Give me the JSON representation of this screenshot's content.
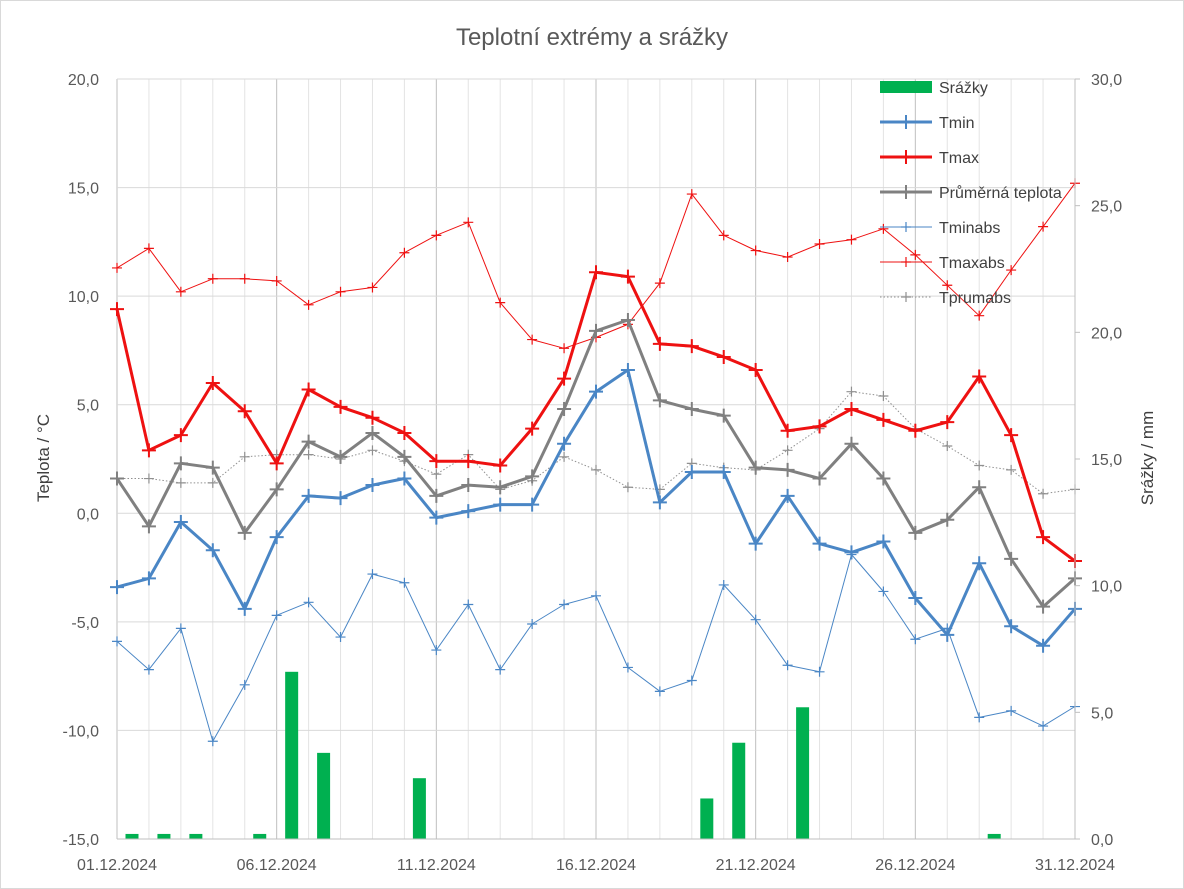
{
  "chart_data": {
    "type": "line",
    "title": "Teplotní extrémy a srážky",
    "ylabel": "Teplota / °C",
    "y2label": "Srážky / mm",
    "ylim": [
      -15,
      20
    ],
    "y2lim": [
      0,
      30
    ],
    "y_ticks": [
      "-15,0",
      "-10,0",
      "-5,0",
      "0,0",
      "5,0",
      "10,0",
      "15,0",
      "20,0"
    ],
    "y2_ticks": [
      "0,0",
      "5,0",
      "10,0",
      "15,0",
      "20,0",
      "25,0",
      "30,0"
    ],
    "x_tick_labels": [
      "01.12.2024",
      "06.12.2024",
      "11.12.2024",
      "16.12.2024",
      "21.12.2024",
      "26.12.2024",
      "31.12.2024"
    ],
    "x_tick_days": [
      1,
      6,
      11,
      16,
      21,
      26,
      31
    ],
    "grid": true,
    "legend_position": "top-right",
    "x": [
      1,
      2,
      3,
      4,
      5,
      6,
      7,
      8,
      9,
      10,
      11,
      12,
      13,
      14,
      15,
      16,
      17,
      18,
      19,
      20,
      21,
      22,
      23,
      24,
      25,
      26,
      27,
      28,
      29,
      30,
      31
    ],
    "bar_series": {
      "name": "Srážky",
      "axis": "right",
      "color": "#00b050",
      "values": [
        0.2,
        0.2,
        0.2,
        0,
        0.2,
        6.6,
        3.4,
        0,
        0,
        2.4,
        0,
        0,
        0,
        0,
        0,
        0,
        0,
        0,
        1.6,
        3.8,
        0,
        5.2,
        0,
        0,
        0,
        0,
        0,
        0.2,
        0,
        0,
        0
      ]
    },
    "series": [
      {
        "name": "Tmin",
        "color": "#4a86c5",
        "style": "thick",
        "values": [
          -3.4,
          -3.0,
          -0.4,
          -1.7,
          -4.4,
          -1.1,
          0.8,
          0.7,
          1.3,
          1.6,
          -0.2,
          0.1,
          0.4,
          0.4,
          3.2,
          5.6,
          6.6,
          0.5,
          1.9,
          1.9,
          -1.4,
          0.8,
          -1.4,
          -1.8,
          -1.3,
          -3.9,
          -5.6,
          -2.3,
          -5.2,
          -6.1,
          -4.4
        ]
      },
      {
        "name": "Tmax",
        "color": "#ee1111",
        "style": "thick",
        "values": [
          9.4,
          2.9,
          3.6,
          6.0,
          4.7,
          2.3,
          5.7,
          4.9,
          4.4,
          3.7,
          2.4,
          2.4,
          2.2,
          3.9,
          6.2,
          11.1,
          10.9,
          7.8,
          7.7,
          7.2,
          6.6,
          3.8,
          4.0,
          4.8,
          4.3,
          3.8,
          4.2,
          6.3,
          3.6,
          -1.1,
          -2.2
        ]
      },
      {
        "name": "Průměrná teplota",
        "color": "#808080",
        "style": "thick",
        "values": [
          1.6,
          -0.6,
          2.3,
          2.1,
          -0.9,
          1.1,
          3.3,
          2.6,
          3.7,
          2.6,
          0.8,
          1.3,
          1.2,
          1.7,
          4.8,
          8.4,
          8.9,
          5.2,
          4.8,
          4.5,
          2.1,
          2.0,
          1.6,
          3.2,
          1.6,
          -0.9,
          -0.3,
          1.2,
          -2.1,
          -4.3,
          -3.0
        ]
      },
      {
        "name": "Tminabs",
        "color": "#4a86c5",
        "style": "thin",
        "values": [
          -5.9,
          -7.2,
          -5.3,
          -10.5,
          -7.9,
          -4.7,
          -4.1,
          -5.7,
          -2.8,
          -3.2,
          -6.3,
          -4.2,
          -7.2,
          -5.1,
          -4.2,
          -3.8,
          -7.1,
          -8.2,
          -7.7,
          -3.3,
          -4.9,
          -7.0,
          -7.3,
          -1.9,
          -3.6,
          -5.8,
          -5.3,
          -9.4,
          -9.1,
          -9.8,
          -8.9
        ]
      },
      {
        "name": "Tmaxabs",
        "color": "#ee1111",
        "style": "thin",
        "values": [
          11.3,
          12.2,
          10.2,
          10.8,
          10.8,
          10.7,
          9.6,
          10.2,
          10.4,
          12.0,
          12.8,
          13.4,
          9.7,
          8.0,
          7.6,
          8.1,
          8.7,
          10.6,
          14.7,
          12.8,
          12.1,
          11.8,
          12.4,
          12.6,
          13.1,
          11.9,
          10.5,
          9.1,
          11.2,
          13.2,
          15.2
        ]
      },
      {
        "name": "Tprumabs",
        "color": "#909090",
        "style": "dotted",
        "values": [
          1.6,
          1.6,
          1.4,
          1.4,
          2.6,
          2.7,
          2.7,
          2.5,
          2.9,
          2.4,
          1.8,
          2.7,
          1.1,
          1.5,
          2.6,
          2.0,
          1.2,
          1.1,
          2.3,
          2.1,
          2.0,
          2.9,
          3.9,
          5.6,
          5.4,
          3.9,
          3.1,
          2.2,
          2.0,
          0.9,
          1.1
        ]
      }
    ]
  }
}
